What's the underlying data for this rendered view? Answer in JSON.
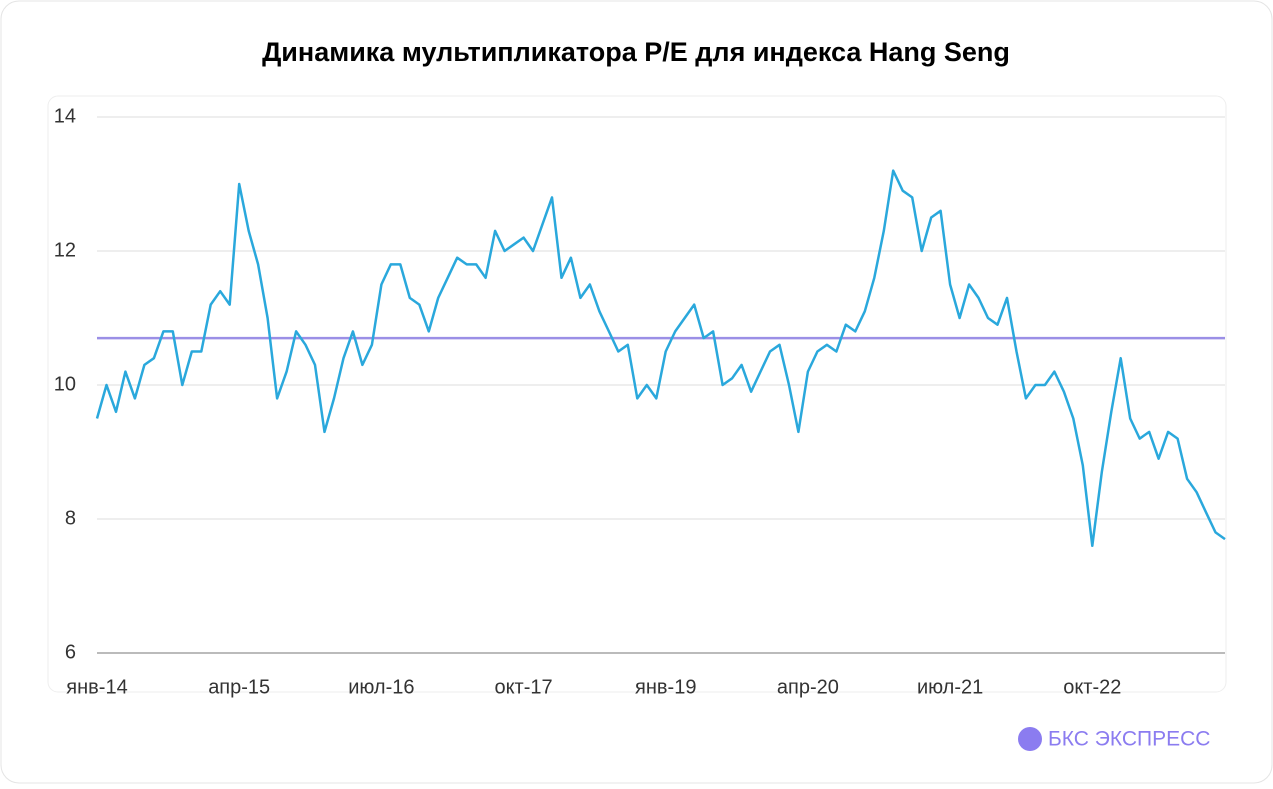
{
  "chart_data": {
    "type": "line",
    "title": "Динамика мультипликатора P/E для индекса Hang Seng",
    "brand": "БКС ЭКСПРЕСС",
    "categories": [
      "янв-14",
      null,
      null,
      null,
      null,
      null,
      null,
      null,
      null,
      null,
      null,
      null,
      null,
      null,
      null,
      "апр-15",
      null,
      null,
      null,
      null,
      null,
      null,
      null,
      null,
      null,
      null,
      null,
      null,
      null,
      null,
      "июл-16",
      null,
      null,
      null,
      null,
      null,
      null,
      null,
      null,
      null,
      null,
      null,
      null,
      null,
      null,
      "окт-17",
      null,
      null,
      null,
      null,
      null,
      null,
      null,
      null,
      null,
      null,
      null,
      null,
      null,
      null,
      "янв-19",
      null,
      null,
      null,
      null,
      null,
      null,
      null,
      null,
      null,
      null,
      null,
      null,
      null,
      null,
      "апр-20",
      null,
      null,
      null,
      null,
      null,
      null,
      null,
      null,
      null,
      null,
      null,
      null,
      null,
      null,
      "июл-21",
      null,
      null,
      null,
      null,
      null,
      null,
      null,
      null,
      null,
      null,
      null,
      null,
      null,
      null,
      "окт-22",
      null,
      null,
      null,
      null,
      null,
      null,
      null,
      null,
      null,
      null,
      null,
      null,
      null,
      null
    ],
    "series": [
      {
        "color": "#2aa8dc",
        "values": [
          9.5,
          10.0,
          9.6,
          10.2,
          9.8,
          10.3,
          10.4,
          10.8,
          10.8,
          10.0,
          10.5,
          10.5,
          11.2,
          11.4,
          11.2,
          13.0,
          12.3,
          11.8,
          11.0,
          9.8,
          10.2,
          10.8,
          10.6,
          10.3,
          9.3,
          9.8,
          10.4,
          10.8,
          10.3,
          10.6,
          11.5,
          11.8,
          11.8,
          11.3,
          11.2,
          10.8,
          11.3,
          11.6,
          11.9,
          11.8,
          11.8,
          11.6,
          12.3,
          12.0,
          12.1,
          12.2,
          12.0,
          12.4,
          12.8,
          11.6,
          11.9,
          11.3,
          11.5,
          11.1,
          10.8,
          10.5,
          10.6,
          9.8,
          10.0,
          9.8,
          10.5,
          10.8,
          11.0,
          11.2,
          10.7,
          10.8,
          10.0,
          10.1,
          10.3,
          9.9,
          10.2,
          10.5,
          10.6,
          10.0,
          9.3,
          10.2,
          10.5,
          10.6,
          10.5,
          10.9,
          10.8,
          11.1,
          11.6,
          12.3,
          13.2,
          12.9,
          12.8,
          12.0,
          12.5,
          12.6,
          11.5,
          11.0,
          11.5,
          11.3,
          11.0,
          10.9,
          11.3,
          10.5,
          9.8,
          10.0,
          10.0,
          10.2,
          9.9,
          9.5,
          8.8,
          7.6,
          8.7,
          9.6,
          10.4,
          9.5,
          9.2,
          9.3,
          8.9,
          9.3,
          9.2,
          8.6,
          8.4,
          8.1,
          7.8,
          7.7
        ]
      }
    ],
    "reference_line": {
      "value": 10.7,
      "color": "#9b8fe6"
    },
    "ylim": [
      6,
      14
    ],
    "yticks": [
      6,
      8,
      10,
      12,
      14
    ],
    "grid": true
  }
}
